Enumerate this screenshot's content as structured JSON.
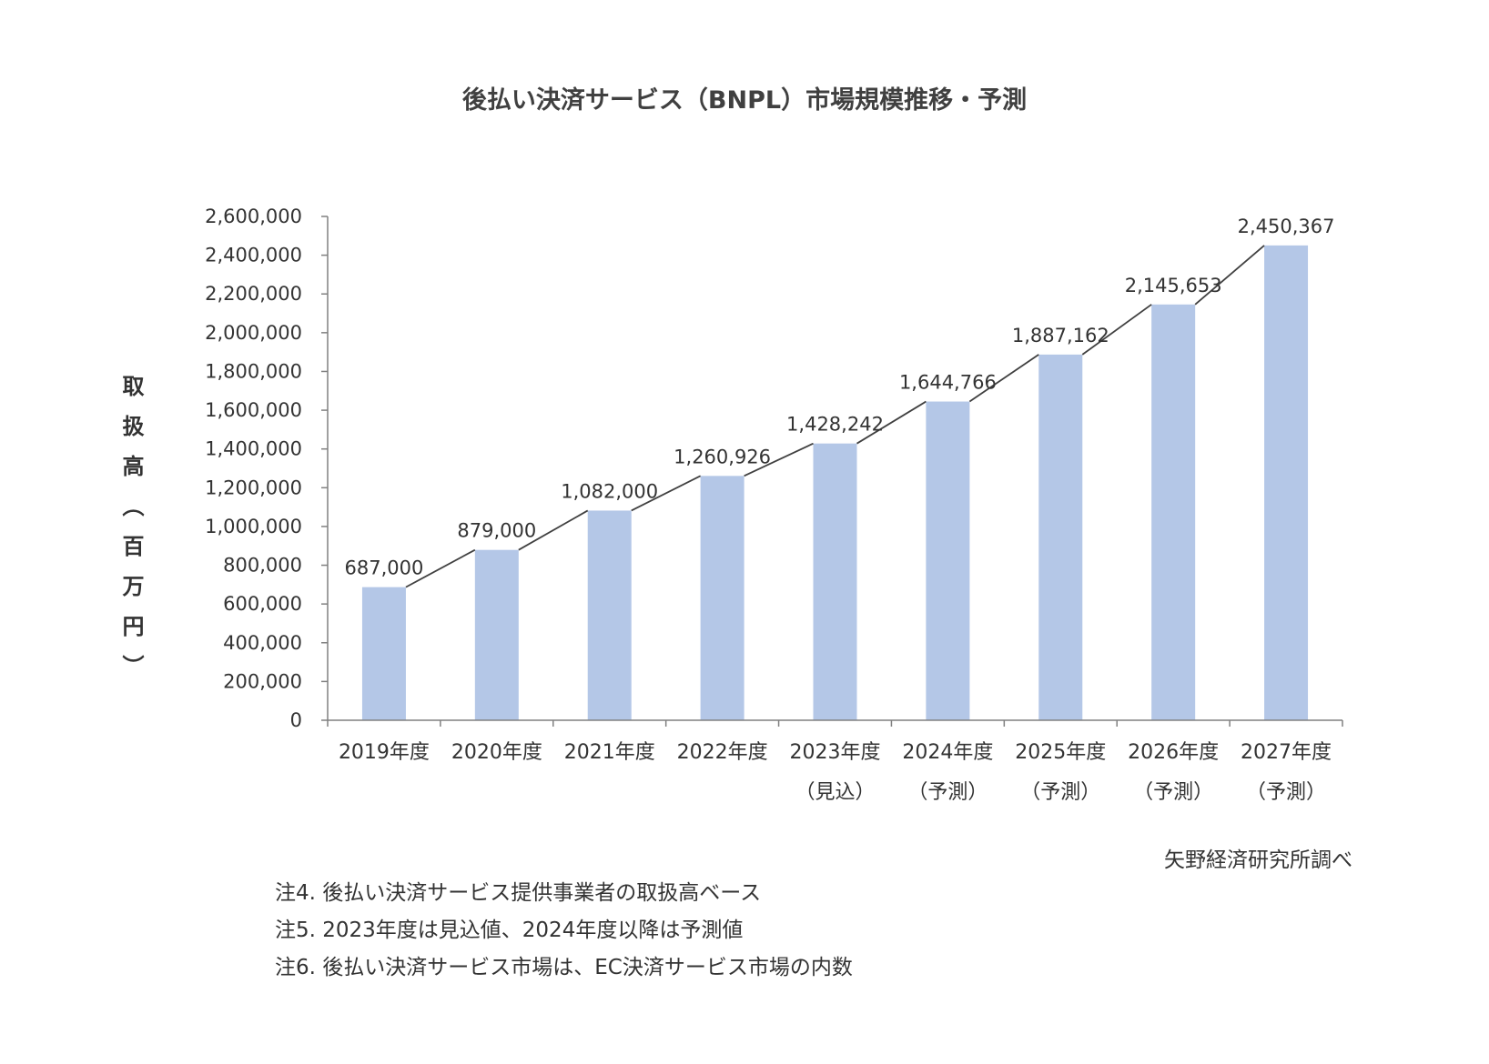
{
  "title": "後払い決済サービス（BNPL）市場規模推移・予測",
  "y_axis_label": "取扱高（百万円）",
  "source": "矢野経済研究所調べ",
  "notes": [
    "注4. 後払い決済サービス提供事業者の取扱高ベース",
    "注5. 2023年度は見込値、2024年度以降は予測値",
    "注6. 後払い決済サービス市場は、EC決済サービス市場の内数"
  ],
  "colors": {
    "bar": "#b4c7e7",
    "line": "#404040",
    "axis": "#808080"
  },
  "chart_data": {
    "type": "bar",
    "title": "後払い決済サービス（BNPL）市場規模推移・予測",
    "ylabel": "取扱高（百万円）",
    "xlabel": "",
    "ylim": [
      0,
      2600000
    ],
    "y_ticks": [
      "0",
      "200,000",
      "400,000",
      "600,000",
      "800,000",
      "1,000,000",
      "1,200,000",
      "1,400,000",
      "1,600,000",
      "1,800,000",
      "2,000,000",
      "2,200,000",
      "2,400,000",
      "2,600,000"
    ],
    "grid": false,
    "categories": [
      "2019年度",
      "2020年度",
      "2021年度",
      "2022年度",
      "2023年度",
      "2024年度",
      "2025年度",
      "2026年度",
      "2027年度"
    ],
    "category_sublabels": [
      "",
      "",
      "",
      "",
      "（見込）",
      "（予測）",
      "（予測）",
      "（予測）",
      "（予測）"
    ],
    "values": [
      687000,
      879000,
      1082000,
      1260926,
      1428242,
      1644766,
      1887162,
      2145653,
      2450367
    ],
    "value_labels": [
      "687,000",
      "879,000",
      "1,082,000",
      "1,260,926",
      "1,428,242",
      "1,644,766",
      "1,887,162",
      "2,145,653",
      "2,450,367"
    ],
    "trend_line": true
  }
}
